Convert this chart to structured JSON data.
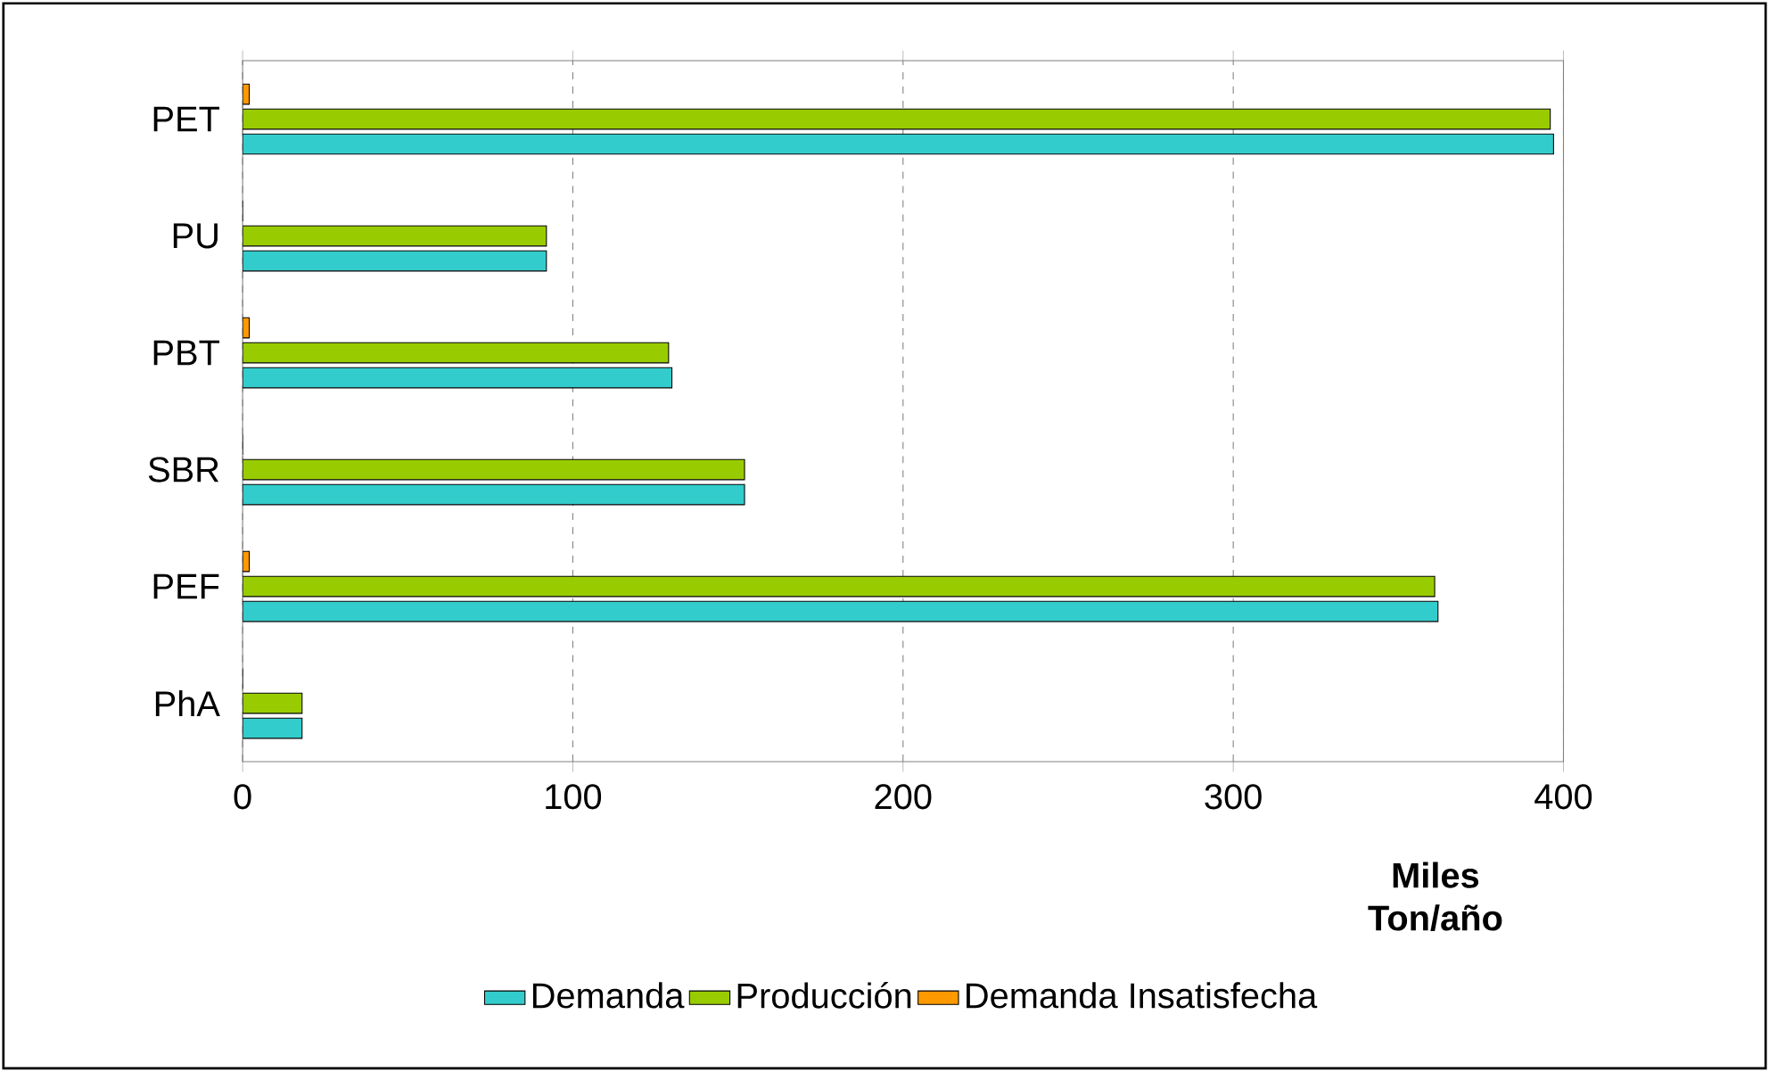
{
  "chart_data": {
    "type": "bar",
    "orientation": "horizontal",
    "categories": [
      "PET",
      "PU",
      "PBT",
      "SBR",
      "PEF",
      "PhA"
    ],
    "series": [
      {
        "name": "Demanda",
        "color": "#33cccc",
        "values": [
          397,
          92,
          130,
          152,
          362,
          18
        ]
      },
      {
        "name": "Producción",
        "color": "#99cc00",
        "values": [
          396,
          92,
          129,
          152,
          361,
          18
        ]
      },
      {
        "name": "Demanda Insatisfecha",
        "color": "#ff9900",
        "values": [
          2,
          0,
          2,
          0,
          2,
          0
        ]
      }
    ],
    "xlabel": "Miles Ton/año",
    "xlim": [
      0,
      400
    ],
    "xticks": [
      0,
      100,
      200,
      300,
      400
    ],
    "grid": "x",
    "legend": "bottom"
  }
}
